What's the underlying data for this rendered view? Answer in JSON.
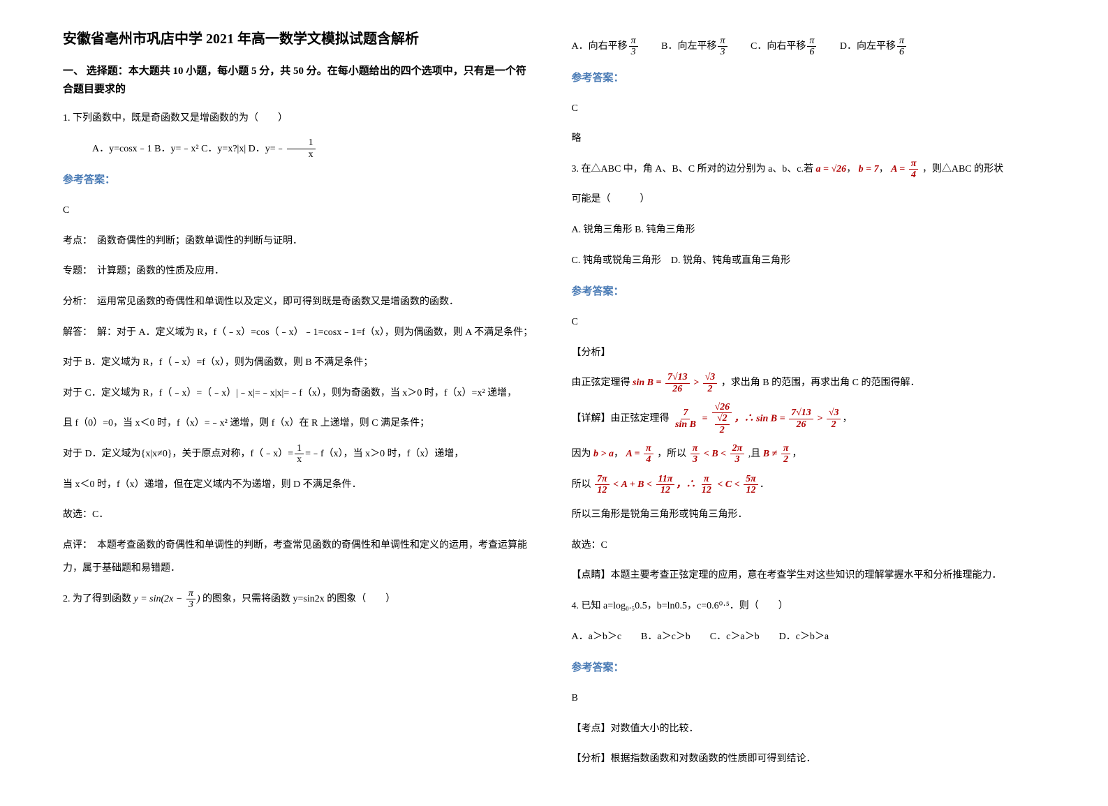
{
  "title": "安徽省亳州市巩店中学 2021 年高一数学文模拟试题含解析",
  "section1_header": "一、 选择题：本大题共 10 小题，每小题 5 分，共 50 分。在每小题给出的四个选项中，只有是一个符合题目要求的",
  "answer_label": "参考答案：",
  "q1": {
    "stem": "1. 下列函数中，既是奇函数又是增函数的为（　　）",
    "options": "　A．y=cosx﹣1  B．y=﹣x²  C．y=x?|x|  D．y=﹣",
    "frac_one_x_num": "1",
    "frac_one_x_den": "x",
    "answer": "C",
    "ana_kaodian": "考点：　函数奇偶性的判断；函数单调性的判断与证明．",
    "ana_zhuanti": "专题：　计算题；函数的性质及应用．",
    "ana_fenxi": "分析：　运用常见函数的奇偶性和单调性以及定义，即可得到既是奇函数又是增函数的函数．",
    "sol_intro": "解答：　解：对于 A．定义域为 R，f（﹣x）=cos（﹣x）﹣1=cosx﹣1=f（x），则为偶函数，则 A 不满足条件；",
    "sol_b": "对于 B．定义域为 R，f（﹣x）=f（x），则为偶函数，则 B 不满足条件；",
    "sol_c": "对于 C．定义域为 R，f（﹣x）=（﹣x）|﹣x|=﹣x|x|=﹣f（x），则为奇函数，当 x＞0 时，f（x）=x² 递增，",
    "sol_c2": "且 f（0）=0，当 x＜0 时，f（x）=﹣x² 递增，则 f（x）在 R 上递增，则 C 满足条件；",
    "sol_d_pre": "对于 D．定义域为{x|x≠0}，关于原点对称，f（﹣x）=",
    "sol_d_post": "=﹣f（x），当 x＞0 时，f（x）递增，",
    "sol_d2": "当 x＜0 时，f（x）递增，但在定义域内不为递增，则 D 不满足条件．",
    "sol_end": "故选：C．",
    "dianping": "点评：　本题考查函数的奇偶性和单调性的判断，考查常见函数的奇偶性和单调性和定义的运用，考查运算能力，属于基础题和易错题．"
  },
  "q2": {
    "stem_pre": "2. 为了得到函数 ",
    "func": "y = sin(2x − ",
    "frac_pi_3_num": "π",
    "frac_pi_3_den": "3",
    "stem_post": " 的图象，只需将函数 y=sin2x 的图象（　　）",
    "opt_a": "A．向右平移",
    "opt_b": "B．向左平移",
    "opt_c": "C．向右平移",
    "opt_d": "D．向左平移",
    "frac_pi_6_num": "π",
    "frac_pi_6_den": "6",
    "answer": "C",
    "lue": "略"
  },
  "q3": {
    "stem_pre": "3. 在△ABC 中，角 A、B、C 所对的边分别为 a、b、c.若 ",
    "a_eq": "a = √26",
    "b_eq": "b = 7",
    "A_eq": "A = ",
    "frac_pi_4_num": "π",
    "frac_pi_4_den": "4",
    "stem_post": "，则△ABC 的形状",
    "stem_line2": "可能是（　　　）",
    "opt_a": "A. 锐角三角形  B. 钝角三角形",
    "opt_c": "C. 钝角或锐角三角形　D. 锐角、钝角或直角三角形",
    "answer": "C",
    "fenxi_label": "【分析】",
    "fenxi_pre": "由正弦定理得 ",
    "sinB_expr1": "sin B = ",
    "f1_num": "7√13",
    "f1_den": "26",
    "gt": " > ",
    "f2_num": "√3",
    "f2_den": "2",
    "fenxi_post": "，求出角 B 的范围，再求出角 C 的范围得解．",
    "detail_label": "【详解】由正弦定理得 ",
    "det_f1_num": "7",
    "det_f1_den": "sin B",
    "det_eq": " = ",
    "det_f2_num": "√26",
    "det_f2_den_num": "√2",
    "det_f2_den_den": "2",
    "det_so": "，∴ sin B = ",
    "det_f3_num": "7√13",
    "det_f3_den": "26",
    "det_gt": " > ",
    "det_f4_num": "√3",
    "det_f4_den": "2",
    "because": "因为 ",
    "ba": "b > a",
    "A_pi4": "A = ",
    "so": "，所以 ",
    "B_range_l_num": "π",
    "B_range_l_den": "3",
    "B_lt": " < B < ",
    "B_range_r_num": "2π",
    "B_range_r_den": "3",
    "and": " ,且 ",
    "B_ne": "B ≠ ",
    "pi2_num": "π",
    "pi2_den": "2",
    "so2": "所以 ",
    "ab_l_num": "7π",
    "ab_l_den": "12",
    "ab_mid": " < A + B < ",
    "ab_r_num": "11π",
    "ab_r_den": "12",
    "c_so": "，∴ ",
    "c_l_num": "π",
    "c_l_den": "12",
    "c_mid": " < C < ",
    "c_r_num": "5π",
    "c_r_den": "12",
    "concl": "所以三角形是锐角三角形或钝角三角形．",
    "choose": "故选：C",
    "dianjing": "【点睛】本题主要考查正弦定理的应用，意在考查学生对这些知识的理解掌握水平和分析推理能力．"
  },
  "q4": {
    "stem": "4. 已知 a=log₀.₅0.5，b=ln0.5，c=0.6⁰·⁵．则（　　）",
    "opts": "A．a＞b＞c　　B．a＞c＞b　　C．c＞a＞b　　D．c＞b＞a",
    "answer": "B",
    "kaodian": "【考点】对数值大小的比较．",
    "fenxi": "【分析】根据指数函数和对数函数的性质即可得到结论．"
  }
}
